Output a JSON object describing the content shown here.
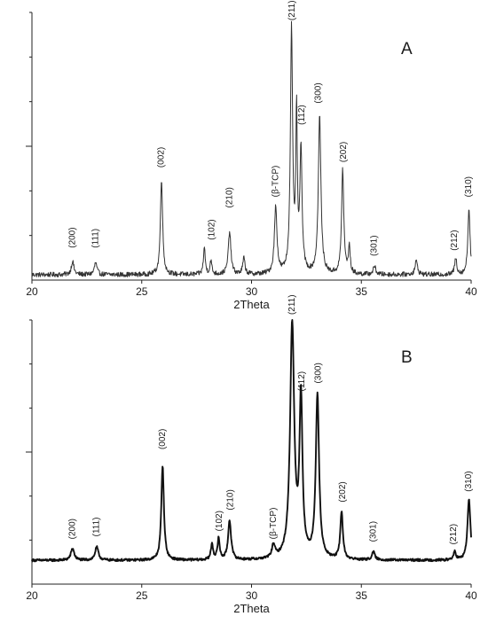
{
  "chart_data": [
    {
      "type": "line",
      "panel": "A",
      "xlabel": "2Theta",
      "ylabel": "",
      "xlim": [
        20,
        40
      ],
      "ylim": [
        0,
        100
      ],
      "xticks": [
        20,
        25,
        30,
        35,
        40
      ],
      "x_tick_labels": [
        "20",
        "25",
        "30",
        "35",
        "40"
      ],
      "line_color": "#333333",
      "line_style": "thin, noisy",
      "baseline": 2,
      "noise": 0.9,
      "peaks": [
        {
          "x": 21.85,
          "h": 5,
          "w": 0.07
        },
        {
          "x": 22.9,
          "h": 4.5,
          "w": 0.07
        },
        {
          "x": 25.9,
          "h": 36,
          "w": 0.06
        },
        {
          "x": 27.85,
          "h": 10,
          "w": 0.05
        },
        {
          "x": 28.15,
          "h": 5,
          "w": 0.05
        },
        {
          "x": 29.0,
          "h": 16,
          "w": 0.07
        },
        {
          "x": 29.65,
          "h": 6,
          "w": 0.06
        },
        {
          "x": 31.1,
          "h": 25,
          "w": 0.07
        },
        {
          "x": 31.82,
          "h": 91,
          "w": 0.06
        },
        {
          "x": 32.05,
          "h": 58,
          "w": 0.04
        },
        {
          "x": 32.25,
          "h": 45,
          "w": 0.06
        },
        {
          "x": 33.1,
          "h": 59,
          "w": 0.07
        },
        {
          "x": 34.15,
          "h": 39,
          "w": 0.06
        },
        {
          "x": 34.45,
          "h": 10,
          "w": 0.05
        },
        {
          "x": 35.6,
          "h": 3,
          "w": 0.07
        },
        {
          "x": 37.5,
          "h": 5,
          "w": 0.07
        },
        {
          "x": 39.3,
          "h": 6,
          "w": 0.06
        },
        {
          "x": 39.9,
          "h": 25,
          "w": 0.06
        }
      ],
      "annotations": [
        {
          "text": "(200)",
          "x": 21.85,
          "y": 12
        },
        {
          "text": "(111)",
          "x": 22.9,
          "y": 12
        },
        {
          "text": "(002)",
          "x": 25.9,
          "y": 42
        },
        {
          "text": "(102)",
          "x": 28.2,
          "y": 15
        },
        {
          "text": "(210)",
          "x": 29.0,
          "y": 27
        },
        {
          "text": "(β-TCP)",
          "x": 31.1,
          "y": 31
        },
        {
          "text": "(211)",
          "x": 31.85,
          "y": 97
        },
        {
          "text": "(112)",
          "x": 32.3,
          "y": 58
        },
        {
          "text": "(300)",
          "x": 33.05,
          "y": 66
        },
        {
          "text": "(202)",
          "x": 34.2,
          "y": 44
        },
        {
          "text": "(301)",
          "x": 35.6,
          "y": 9
        },
        {
          "text": "(212)",
          "x": 39.25,
          "y": 11
        },
        {
          "text": "(310)",
          "x": 39.9,
          "y": 31
        }
      ]
    },
    {
      "type": "line",
      "panel": "B",
      "xlabel": "2Theta",
      "ylabel": "",
      "xlim": [
        20,
        40
      ],
      "ylim": [
        0,
        100
      ],
      "xticks": [
        20,
        25,
        30,
        35,
        40
      ],
      "x_tick_labels": [
        "20",
        "25",
        "30",
        "35",
        "40"
      ],
      "line_color": "#111111",
      "line_style": "thick, smooth",
      "baseline": 9,
      "noise": 0.45,
      "peaks": [
        {
          "x": 21.85,
          "h": 4.5,
          "w": 0.09
        },
        {
          "x": 22.95,
          "h": 5,
          "w": 0.09
        },
        {
          "x": 25.95,
          "h": 36,
          "w": 0.07
        },
        {
          "x": 28.2,
          "h": 6,
          "w": 0.06
        },
        {
          "x": 28.5,
          "h": 8,
          "w": 0.06
        },
        {
          "x": 29.0,
          "h": 15,
          "w": 0.08
        },
        {
          "x": 31.0,
          "h": 5,
          "w": 0.08
        },
        {
          "x": 31.85,
          "h": 89,
          "w": 0.11
        },
        {
          "x": 32.25,
          "h": 60,
          "w": 0.08
        },
        {
          "x": 33.0,
          "h": 62,
          "w": 0.09
        },
        {
          "x": 34.1,
          "h": 18,
          "w": 0.07
        },
        {
          "x": 35.55,
          "h": 3,
          "w": 0.08
        },
        {
          "x": 39.25,
          "h": 3,
          "w": 0.07
        },
        {
          "x": 39.9,
          "h": 23,
          "w": 0.08
        }
      ],
      "annotations": [
        {
          "text": "(200)",
          "x": 21.85,
          "y": 17
        },
        {
          "text": "(111)",
          "x": 22.95,
          "y": 18
        },
        {
          "text": "(002)",
          "x": 25.95,
          "y": 51
        },
        {
          "text": "(102)",
          "x": 28.55,
          "y": 20
        },
        {
          "text": "(210)",
          "x": 29.05,
          "y": 28
        },
        {
          "text": "(β-TCP)",
          "x": 31.0,
          "y": 17
        },
        {
          "text": "(211)",
          "x": 31.85,
          "y": 102
        },
        {
          "text": "(112)",
          "x": 32.3,
          "y": 73
        },
        {
          "text": "(300)",
          "x": 33.05,
          "y": 76
        },
        {
          "text": "(202)",
          "x": 34.15,
          "y": 31
        },
        {
          "text": "(301)",
          "x": 35.55,
          "y": 16
        },
        {
          "text": "(212)",
          "x": 39.2,
          "y": 15
        },
        {
          "text": "(310)",
          "x": 39.9,
          "y": 35
        }
      ]
    }
  ]
}
